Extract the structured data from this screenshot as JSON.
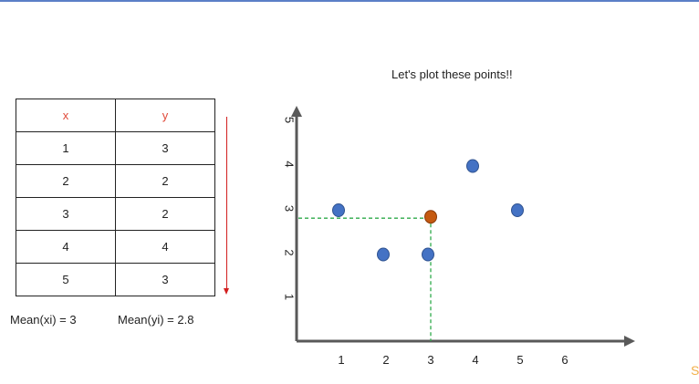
{
  "table": {
    "headers": [
      "x",
      "y"
    ],
    "rows": [
      [
        "1",
        "3"
      ],
      [
        "2",
        "2"
      ],
      [
        "3",
        "2"
      ],
      [
        "4",
        "4"
      ],
      [
        "5",
        "3"
      ]
    ]
  },
  "means": {
    "x_label": "Mean(xi) = 3",
    "y_label": "Mean(yi) = 2.8"
  },
  "chart_data": {
    "type": "scatter",
    "title": "Let's plot these points!!",
    "xlabel": "",
    "ylabel": "",
    "x_ticks": [
      "1",
      "2",
      "3",
      "4",
      "5",
      "6"
    ],
    "y_ticks": [
      "1",
      "2",
      "3",
      "4",
      "5"
    ],
    "xlim": [
      0,
      6.5
    ],
    "ylim": [
      0,
      5.5
    ],
    "grid": false,
    "series": [
      {
        "x": [
          1,
          2,
          3,
          4,
          5
        ],
        "y": [
          3,
          2,
          2,
          4,
          3
        ],
        "color": "#4472c4"
      }
    ],
    "highlight_point": {
      "x": 3,
      "y": 2.8,
      "color": "#c55a11"
    },
    "guide_line_color": "#2eaa4a",
    "axis_color": "#595959"
  },
  "corner_mark": "S"
}
